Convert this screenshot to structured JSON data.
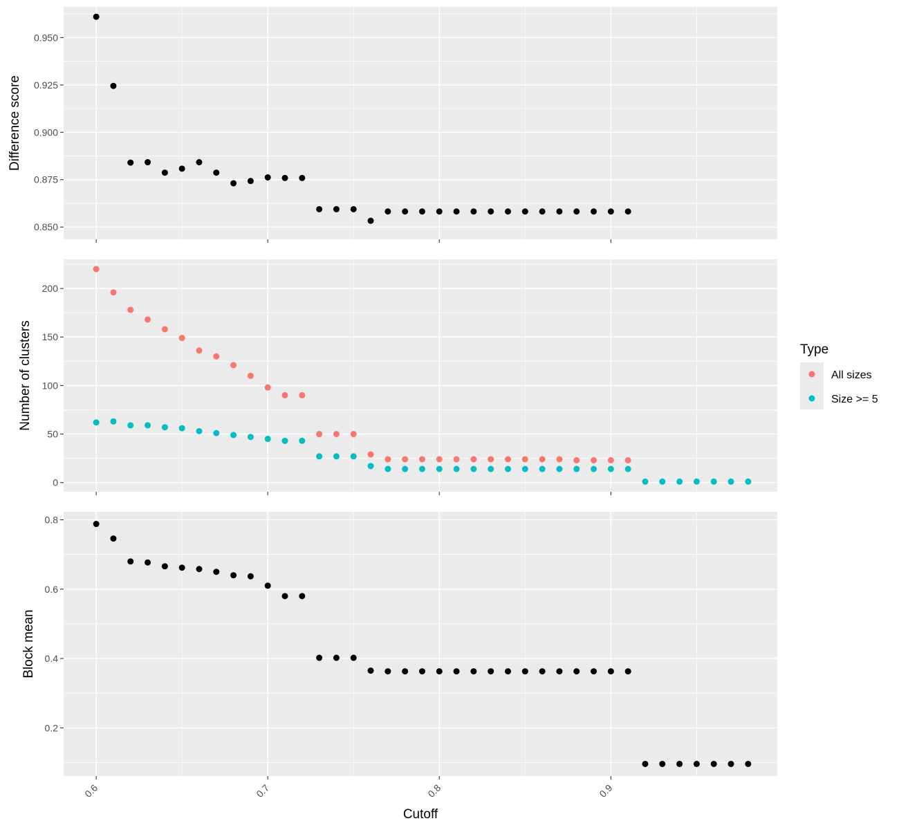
{
  "chart_data": {
    "type": "scatter",
    "xlabel": "Cutoff",
    "xlim": [
      0.581,
      0.997
    ],
    "x_ticks": [
      {
        "value": 0.6,
        "label": "0.6"
      },
      {
        "value": 0.7,
        "label": "0.7"
      },
      {
        "value": 0.8,
        "label": "0.8"
      },
      {
        "value": 0.9,
        "label": "0.9"
      }
    ],
    "grid": true,
    "legend": {
      "title": "Type",
      "position": "right",
      "entries": [
        {
          "label": "All sizes",
          "color": "#F8766D"
        },
        {
          "label": "Size >= 5",
          "color": "#00BFC4"
        }
      ]
    },
    "panels": [
      {
        "ylabel": "Difference score",
        "ylim": [
          0.8435,
          0.9662
        ],
        "y_ticks": [
          {
            "value": 0.85,
            "label": "0.850"
          },
          {
            "value": 0.875,
            "label": "0.875"
          },
          {
            "value": 0.9,
            "label": "0.900"
          },
          {
            "value": 0.925,
            "label": "0.925"
          },
          {
            "value": 0.95,
            "label": "0.950"
          }
        ],
        "series": [
          {
            "color": "#000000",
            "x": [
              0.6,
              0.61,
              0.62,
              0.63,
              0.64,
              0.65,
              0.66,
              0.67,
              0.68,
              0.69,
              0.7,
              0.71,
              0.72,
              0.73,
              0.74,
              0.75,
              0.76,
              0.77,
              0.78,
              0.79,
              0.8,
              0.81,
              0.82,
              0.83,
              0.84,
              0.85,
              0.86,
              0.87,
              0.88,
              0.89,
              0.9,
              0.91
            ],
            "y": [
              0.961,
              0.9245,
              0.884,
              0.8842,
              0.8787,
              0.8808,
              0.8842,
              0.8787,
              0.8731,
              0.8743,
              0.8762,
              0.8759,
              0.8759,
              0.8594,
              0.8594,
              0.8594,
              0.8533,
              0.8582,
              0.8582,
              0.8582,
              0.8582,
              0.8582,
              0.8582,
              0.8582,
              0.8582,
              0.8582,
              0.8582,
              0.8582,
              0.8582,
              0.8582,
              0.8582,
              0.8582
            ]
          }
        ]
      },
      {
        "ylabel": "Number of clusters",
        "ylim": [
          -9.5,
          230
        ],
        "y_ticks": [
          {
            "value": 0,
            "label": "0"
          },
          {
            "value": 50,
            "label": "50"
          },
          {
            "value": 100,
            "label": "100"
          },
          {
            "value": 150,
            "label": "150"
          },
          {
            "value": 200,
            "label": "200"
          }
        ],
        "series": [
          {
            "name": "All sizes",
            "color": "#F8766D",
            "x": [
              0.6,
              0.61,
              0.62,
              0.63,
              0.64,
              0.65,
              0.66,
              0.67,
              0.68,
              0.69,
              0.7,
              0.71,
              0.72,
              0.73,
              0.74,
              0.75,
              0.76,
              0.77,
              0.78,
              0.79,
              0.8,
              0.81,
              0.82,
              0.83,
              0.84,
              0.85,
              0.86,
              0.87,
              0.88,
              0.89,
              0.9,
              0.91
            ],
            "y": [
              220,
              196,
              178,
              168,
              158,
              149,
              136,
              130,
              121,
              110,
              98,
              90,
              90,
              50,
              50,
              50,
              29,
              24,
              24,
              24,
              24,
              24,
              24,
              24,
              24,
              24,
              24,
              24,
              23,
              23,
              23,
              23
            ]
          },
          {
            "name": "Size >= 5",
            "color": "#00BFC4",
            "x": [
              0.6,
              0.61,
              0.62,
              0.63,
              0.64,
              0.65,
              0.66,
              0.67,
              0.68,
              0.69,
              0.7,
              0.71,
              0.72,
              0.73,
              0.74,
              0.75,
              0.76,
              0.77,
              0.78,
              0.79,
              0.8,
              0.81,
              0.82,
              0.83,
              0.84,
              0.85,
              0.86,
              0.87,
              0.88,
              0.89,
              0.9,
              0.91,
              0.92,
              0.93,
              0.94,
              0.95,
              0.96,
              0.97,
              0.98
            ],
            "y": [
              62,
              63,
              59,
              59,
              57,
              56,
              53,
              51,
              49,
              47,
              45,
              43,
              43,
              27,
              27,
              27,
              17,
              14,
              14,
              14,
              14,
              14,
              14,
              14,
              14,
              14,
              14,
              14,
              14,
              14,
              14,
              14,
              1,
              1,
              1,
              1,
              1,
              1,
              1
            ]
          }
        ]
      },
      {
        "ylabel": "Block mean",
        "ylim": [
          0.061,
          0.823
        ],
        "y_ticks": [
          {
            "value": 0.2,
            "label": "0.2"
          },
          {
            "value": 0.4,
            "label": "0.4"
          },
          {
            "value": 0.6,
            "label": "0.6"
          },
          {
            "value": 0.8,
            "label": "0.8"
          }
        ],
        "series": [
          {
            "color": "#000000",
            "x": [
              0.6,
              0.61,
              0.62,
              0.63,
              0.64,
              0.65,
              0.66,
              0.67,
              0.68,
              0.69,
              0.7,
              0.71,
              0.72,
              0.73,
              0.74,
              0.75,
              0.76,
              0.77,
              0.78,
              0.79,
              0.8,
              0.81,
              0.82,
              0.83,
              0.84,
              0.85,
              0.86,
              0.87,
              0.88,
              0.89,
              0.9,
              0.91,
              0.92,
              0.93,
              0.94,
              0.95,
              0.96,
              0.97,
              0.98
            ],
            "y": [
              0.788,
              0.746,
              0.68,
              0.677,
              0.666,
              0.662,
              0.658,
              0.65,
              0.64,
              0.637,
              0.61,
              0.58,
              0.58,
              0.402,
              0.402,
              0.402,
              0.365,
              0.363,
              0.363,
              0.363,
              0.363,
              0.363,
              0.363,
              0.363,
              0.363,
              0.363,
              0.363,
              0.363,
              0.363,
              0.363,
              0.363,
              0.363,
              0.096,
              0.096,
              0.096,
              0.096,
              0.096,
              0.096,
              0.096
            ]
          }
        ]
      }
    ]
  }
}
